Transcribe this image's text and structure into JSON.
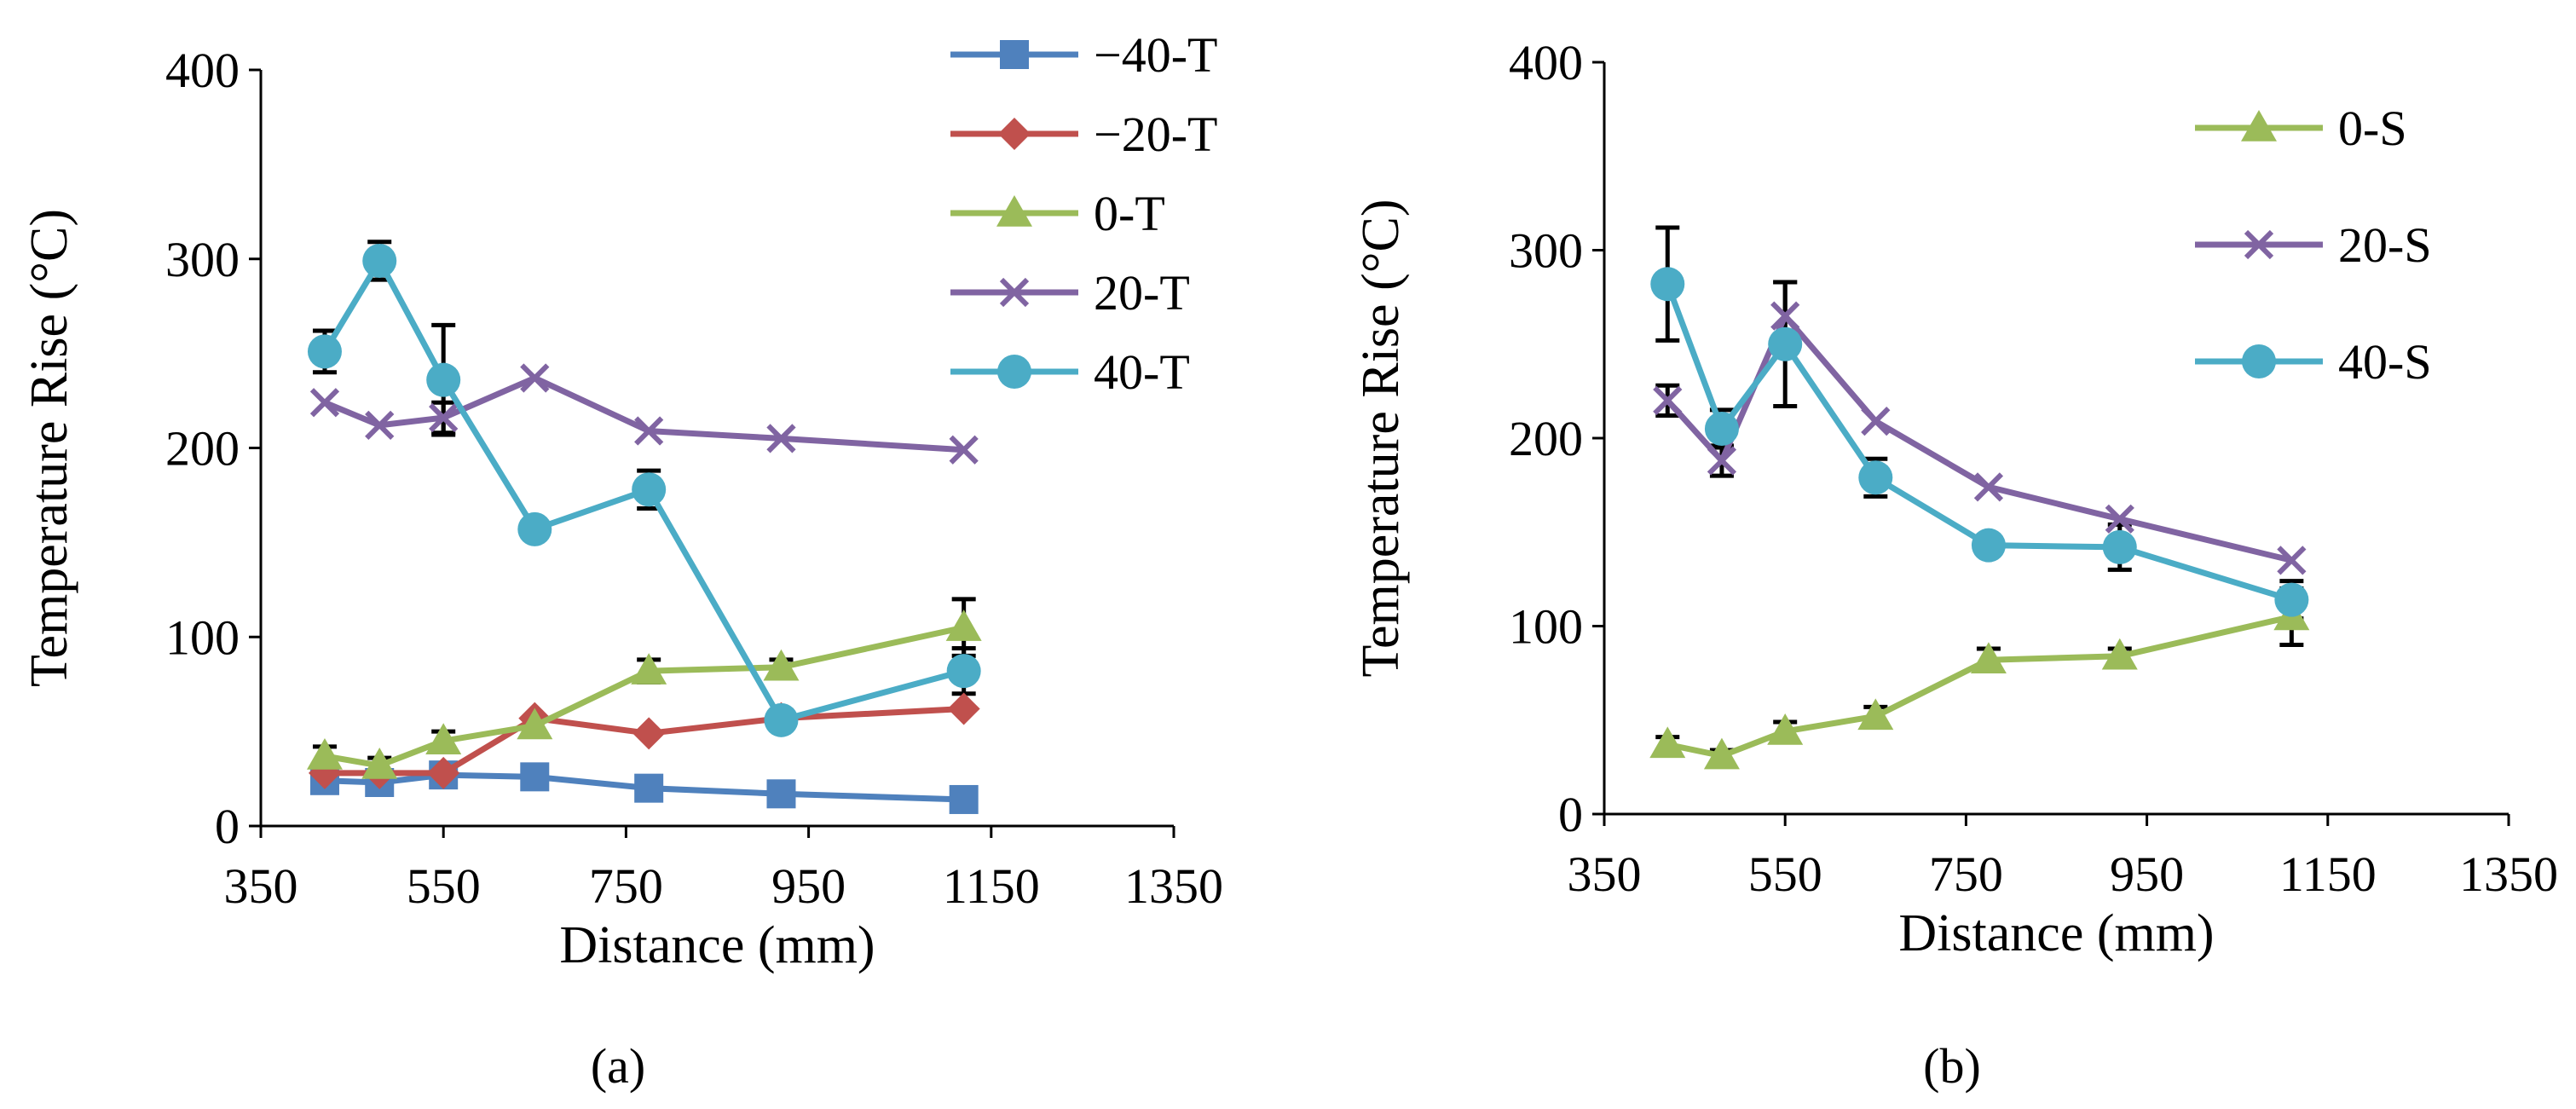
{
  "figure": {
    "panel_labels": [
      "(a)",
      "(b)"
    ]
  },
  "colors": {
    "-40": "#4f81bd",
    "-20": "#c0504d",
    "0": "#9bbb59",
    "20": "#8064a2",
    "40": "#4bacc6",
    "error_bar": "#000000",
    "axis": "#000000"
  },
  "chart_data": [
    {
      "type": "line",
      "panel": "(a)",
      "xlabel": "Distance (mm)",
      "ylabel": "Temperature Rise (°C)",
      "xlim": [
        350,
        1350
      ],
      "ylim": [
        0,
        400
      ],
      "xticks": [
        350,
        550,
        750,
        950,
        1150,
        1350
      ],
      "yticks": [
        0,
        100,
        200,
        300,
        400
      ],
      "grid": false,
      "legend_position": "top-right",
      "x": [
        420,
        480,
        550,
        650,
        775,
        920,
        1120
      ],
      "series": [
        {
          "name": "−40-T",
          "color_key": "-40",
          "marker": "square",
          "values": [
            24,
            23,
            27,
            26,
            20,
            17,
            14
          ],
          "errors": [
            0,
            0,
            0,
            0,
            0,
            0,
            0
          ]
        },
        {
          "name": "−20-T",
          "color_key": "-20",
          "marker": "diamond",
          "values": [
            28,
            28,
            28,
            57,
            49,
            57,
            62
          ],
          "errors": [
            0,
            0,
            0,
            0,
            0,
            0,
            0
          ]
        },
        {
          "name": "0-T",
          "color_key": "0",
          "marker": "triangle",
          "values": [
            37,
            32,
            45,
            53,
            82,
            84,
            105
          ],
          "errors": [
            5,
            4,
            5,
            4,
            6,
            4,
            15
          ]
        },
        {
          "name": "20-T",
          "color_key": "20",
          "marker": "x",
          "values": [
            224,
            212,
            216,
            237,
            209,
            205,
            199
          ],
          "errors": [
            0,
            0,
            8,
            0,
            0,
            0,
            0
          ]
        },
        {
          "name": "40-T",
          "color_key": "40",
          "marker": "circle",
          "values": [
            251,
            299,
            236,
            157,
            178,
            56,
            82
          ],
          "errors": [
            11,
            10,
            29,
            0,
            10,
            0,
            12
          ]
        }
      ]
    },
    {
      "type": "line",
      "panel": "(b)",
      "xlabel": "Distance (mm)",
      "ylabel": "Temperature Rise (°C)",
      "xlim": [
        350,
        1350
      ],
      "ylim": [
        0,
        400
      ],
      "xticks": [
        350,
        550,
        750,
        950,
        1150,
        1350
      ],
      "yticks": [
        0,
        100,
        200,
        300,
        400
      ],
      "grid": false,
      "legend_position": "top-right",
      "x": [
        420,
        480,
        550,
        650,
        775,
        920,
        1110
      ],
      "series": [
        {
          "name": "0-S",
          "color_key": "0",
          "marker": "triangle",
          "values": [
            37,
            31,
            44,
            52,
            82,
            84,
            105
          ],
          "errors": [
            4,
            3,
            5,
            5,
            6,
            4,
            15
          ]
        },
        {
          "name": "20-S",
          "color_key": "20",
          "marker": "x",
          "values": [
            220,
            188,
            265,
            209,
            174,
            157,
            135
          ],
          "errors": [
            8,
            8,
            18,
            0,
            0,
            0,
            0
          ]
        },
        {
          "name": "40-S",
          "color_key": "40",
          "marker": "circle",
          "values": [
            282,
            205,
            250,
            179,
            143,
            142,
            114
          ],
          "errors": [
            30,
            10,
            33,
            10,
            0,
            12,
            10
          ]
        }
      ]
    }
  ]
}
